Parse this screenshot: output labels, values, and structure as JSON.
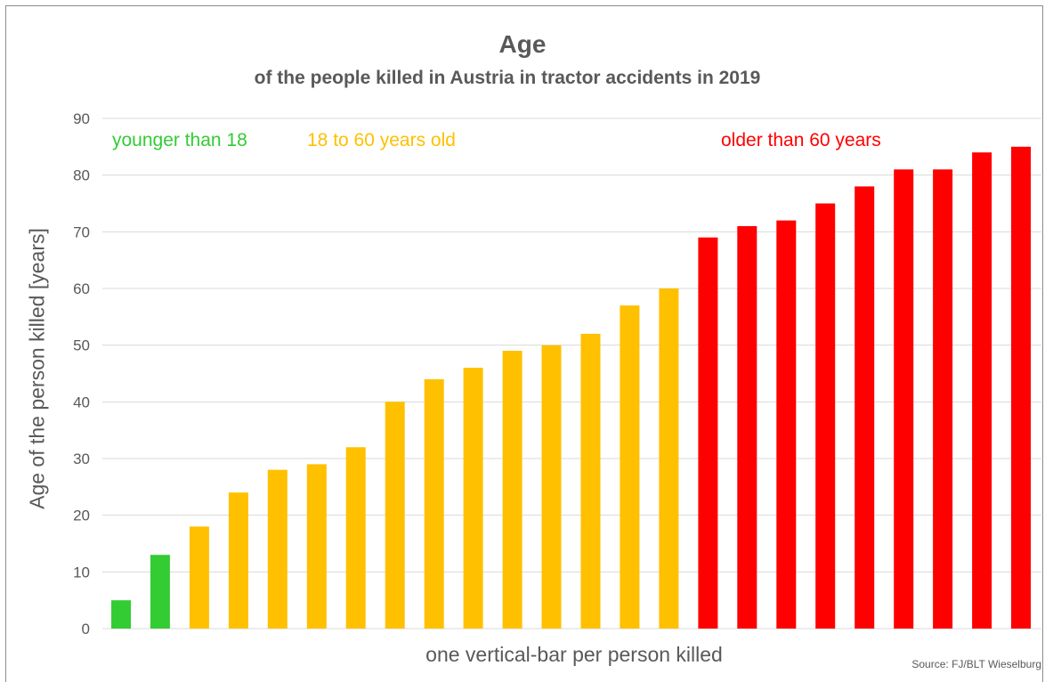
{
  "chart_data": {
    "type": "bar",
    "title": "Age",
    "subtitle": "of the people killed in Austria in tractor accidents in 2019",
    "xlabel": "one vertical-bar per person killed",
    "ylabel": "Age of the person killed  [years]",
    "ylim": [
      0,
      90
    ],
    "yticks": [
      "0",
      "10",
      "20",
      "30",
      "40",
      "50",
      "60",
      "70",
      "80",
      "90"
    ],
    "grid": true,
    "values": [
      5,
      13,
      18,
      24,
      28,
      29,
      32,
      40,
      44,
      46,
      49,
      50,
      52,
      57,
      60,
      69,
      71,
      72,
      75,
      78,
      81,
      81,
      84,
      85
    ],
    "groups": [
      {
        "label": "younger than 18",
        "color": "#33cc33",
        "start": 0,
        "end": 1
      },
      {
        "label": "18 to 60 years old",
        "color": "#ffc000",
        "start": 2,
        "end": 14
      },
      {
        "label": "older than 60 years",
        "color": "#ff0000",
        "start": 15,
        "end": 23
      }
    ],
    "source": "Source: FJ/BLT Wieselburg"
  }
}
